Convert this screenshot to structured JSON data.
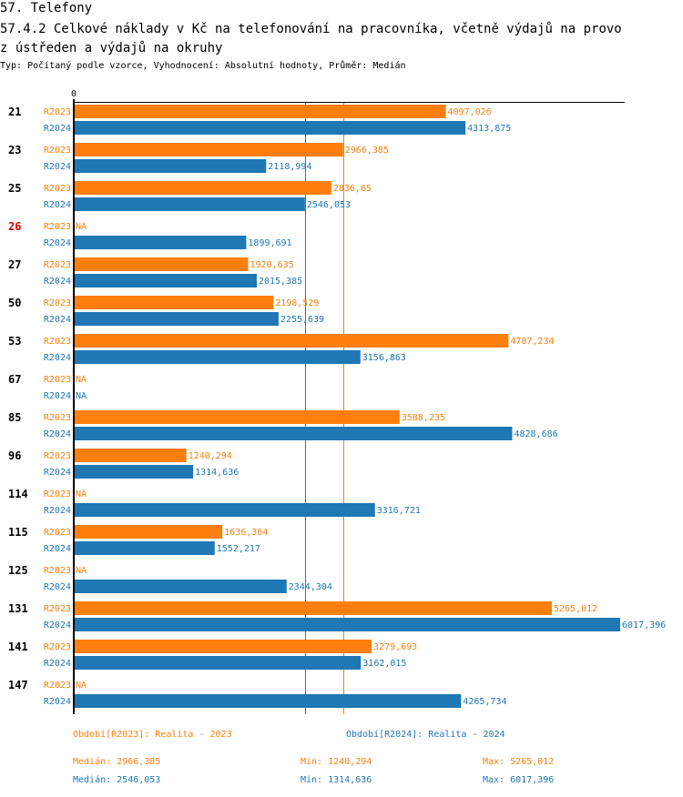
{
  "header": {
    "section_title": "57. Telefony",
    "chart_title_line1": "57.4.2 Celkové náklady v Kč na telefonování na pracovníka, včetně výdajů na provo",
    "chart_title_line2": "z ústředen a výdajů na okruhy",
    "subtitle": "Typ: Počítaný podle vzorce, Vyhodnocení: Absolutní hodnoty, Průměr: Medián"
  },
  "colors": {
    "R2023": "#ff7f0e",
    "R2024": "#1f77b4",
    "highlight_group": "#e00000",
    "axis": "#000000"
  },
  "chart_data": {
    "type": "bar",
    "orientation": "horizontal",
    "title": "57.4.2 Celkové náklady v Kč na telefonování na pracovníka, včetně výdajů na provoz ústředen a výdajů na okruhy",
    "xlabel": "",
    "ylabel": "",
    "x_tick_labels": [
      "0"
    ],
    "xlim": [
      0,
      6017.396
    ],
    "grid": false,
    "legend": "bottom",
    "categories": [
      "21",
      "23",
      "25",
      "26",
      "27",
      "50",
      "53",
      "67",
      "85",
      "96",
      "114",
      "115",
      "125",
      "131",
      "141",
      "147"
    ],
    "highlighted_category": "26",
    "series": [
      {
        "name": "R2023",
        "legend": "Období[R2023]: Realita - 2023",
        "values": [
          4097.026,
          2966.385,
          2836.65,
          null,
          1920.635,
          2198.529,
          4787.234,
          null,
          3588.235,
          1240.294,
          null,
          1636.364,
          null,
          5265.012,
          3279.693,
          null
        ],
        "labels": [
          "4097,026",
          "2966,385",
          "2836,65",
          "NA",
          "1920,635",
          "2198,529",
          "4787,234",
          "NA",
          "3588,235",
          "1240,294",
          "NA",
          "1636,364",
          "NA",
          "5265,012",
          "3279,693",
          "NA"
        ],
        "median": 2966.385,
        "stats": {
          "median": "Medián: 2966,385",
          "min": "Min: 1240,294",
          "max": "Max: 5265,012"
        }
      },
      {
        "name": "R2024",
        "legend": "Období[R2024]: Realita - 2024",
        "values": [
          4313.875,
          2118.994,
          2546.053,
          1899.691,
          2015.385,
          2255.639,
          3156.863,
          null,
          4828.686,
          1314.636,
          3316.721,
          1552.217,
          2344.304,
          6017.396,
          3162.015,
          4265.734
        ],
        "labels": [
          "4313,875",
          "2118,994",
          "2546,053",
          "1899,691",
          "2015,385",
          "2255,639",
          "3156,863",
          "NA",
          "4828,686",
          "1314,636",
          "3316,721",
          "1552,217",
          "2344,304",
          "6017,396",
          "3162,015",
          "4265,734"
        ],
        "median": 2546.053,
        "stats": {
          "median": "Medián: 2546,053",
          "min": "Min: 1314,636",
          "max": "Max: 6017,396"
        }
      }
    ]
  }
}
